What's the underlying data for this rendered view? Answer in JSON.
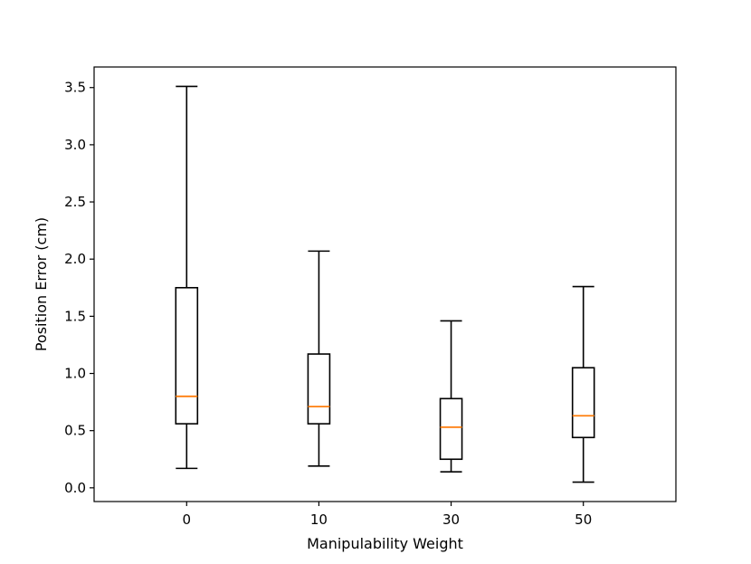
{
  "chart_data": {
    "type": "boxplot",
    "title": "",
    "xlabel": "Manipulability Weight",
    "ylabel": "Position Error (cm)",
    "ylim": [
      -0.12,
      3.68
    ],
    "yticks": [
      0.0,
      0.5,
      1.0,
      1.5,
      2.0,
      2.5,
      3.0,
      3.5
    ],
    "ytick_labels": [
      "0.0",
      "0.5",
      "1.0",
      "1.5",
      "2.0",
      "2.5",
      "3.0",
      "3.5"
    ],
    "categories": [
      "0",
      "10",
      "30",
      "50"
    ],
    "boxes": [
      {
        "category": "0",
        "whislo": 0.17,
        "q1": 0.56,
        "med": 0.8,
        "q3": 1.75,
        "whishi": 3.51
      },
      {
        "category": "10",
        "whislo": 0.19,
        "q1": 0.56,
        "med": 0.71,
        "q3": 1.17,
        "whishi": 2.07
      },
      {
        "category": "30",
        "whislo": 0.14,
        "q1": 0.25,
        "med": 0.53,
        "q3": 0.78,
        "whishi": 1.46
      },
      {
        "category": "50",
        "whislo": 0.05,
        "q1": 0.44,
        "med": 0.63,
        "q3": 1.05,
        "whishi": 1.76
      }
    ],
    "colors": {
      "box": "#000000",
      "median": "#ff7f0e"
    },
    "grid": false,
    "legend": "none"
  }
}
